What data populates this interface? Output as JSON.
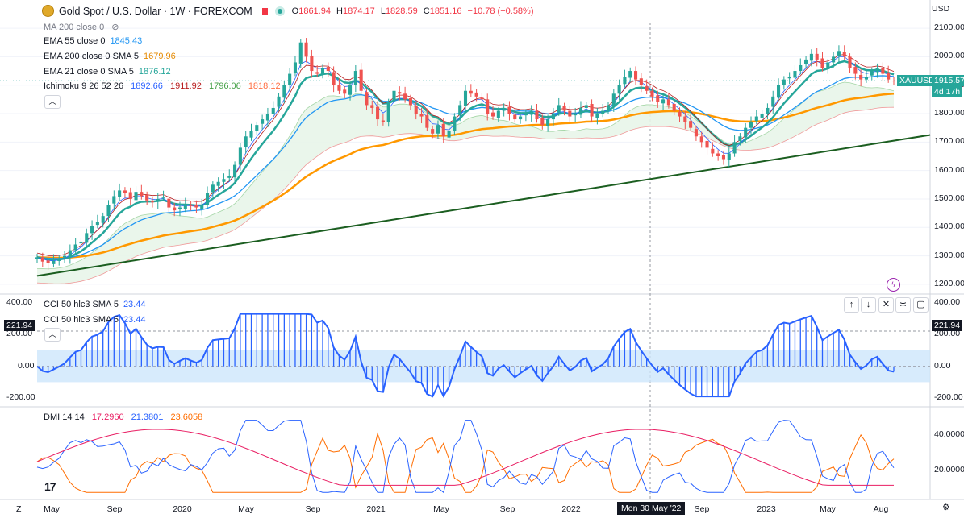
{
  "header": {
    "title": "Gold Spot / U.S. Dollar · 1W · FOREXCOM",
    "ohlc": {
      "o_label": "O",
      "o": "1861.94",
      "h_label": "H",
      "h": "1874.17",
      "l_label": "L",
      "l": "1828.59",
      "c_label": "C",
      "c": "1851.16",
      "change": "−10.78 (−0.58%)"
    }
  },
  "indicators": [
    {
      "label": "MA 200 close 0",
      "value": ""
    },
    {
      "label": "EMA 55 close 0",
      "value": "1845.43",
      "color": "#2196f3"
    },
    {
      "label": "EMA 200 close 0 SMA 5",
      "value": "1679.96",
      "color": "#ff9800"
    },
    {
      "label": "EMA 21 close 0 SMA 5",
      "value": "1876.12",
      "color": "#26a69a"
    },
    {
      "label": "Ichimoku 9 26 52 26",
      "values": [
        "1892.66",
        "1911.92",
        "1796.06",
        "1818.12"
      ],
      "colors": [
        "#2962ff",
        "#b71c1c",
        "#43a047",
        "#ff7043"
      ]
    }
  ],
  "cci_panel": {
    "label1": "CCI 50 hlc3 SMA 5",
    "value1": "23.44",
    "label2": "CCI 50 hlc3 SMA 5",
    "value2": "23.44",
    "tag_left": "221.94",
    "tag_right": "221.94"
  },
  "dmi_panel": {
    "label": "DMI 14 14",
    "values": [
      "17.2960",
      "21.3801",
      "23.6058"
    ],
    "colors": [
      "#e91e63",
      "#2962ff",
      "#ff6d00"
    ]
  },
  "price_axis": {
    "currency": "USD",
    "ticks": [
      "2100.00",
      "2000.00",
      "1900.00",
      "1800.00",
      "1700.00",
      "1600.00",
      "1500.00",
      "1400.00",
      "1300.00",
      "1200.00"
    ],
    "last_price_tag": {
      "symbol": "XAUUSD",
      "price": "1915.57",
      "countdown": "4d 17h"
    }
  },
  "cci_axis": {
    "ticks": [
      "400.00",
      "200.00",
      "0.00",
      "-200.00"
    ]
  },
  "dmi_axis": {
    "ticks": [
      "40.0000",
      "20.0000"
    ]
  },
  "time_axis": {
    "labels": [
      "May",
      "Sep",
      "2020",
      "May",
      "Sep",
      "2021",
      "May",
      "Sep",
      "2022",
      "Sep",
      "2023",
      "May",
      "Aug"
    ],
    "cursor_label": "Mon 30 May '22",
    "left_btn": "Z",
    "right_btn": "⚙"
  },
  "chart_data": {
    "type": "candlestick",
    "symbol": "XAUUSD",
    "timeframe": "1W",
    "start": "2019-03",
    "end": "2023-08",
    "price_range": [
      1180,
      2120
    ],
    "close_series": [
      1295,
      1280,
      1275,
      1282,
      1290,
      1300,
      1320,
      1340,
      1350,
      1380,
      1405,
      1420,
      1440,
      1480,
      1510,
      1530,
      1520,
      1500,
      1525,
      1510,
      1495,
      1490,
      1500,
      1505,
      1470,
      1460,
      1470,
      1480,
      1475,
      1470,
      1480,
      1520,
      1550,
      1560,
      1570,
      1580,
      1620,
      1680,
      1720,
      1740,
      1760,
      1780,
      1800,
      1820,
      1860,
      1900,
      1940,
      1980,
      2050,
      2000,
      1950,
      1940,
      1960,
      1950,
      1900,
      1880,
      1870,
      1900,
      1950,
      1880,
      1830,
      1820,
      1780,
      1770,
      1840,
      1880,
      1870,
      1850,
      1830,
      1800,
      1790,
      1750,
      1730,
      1760,
      1720,
      1740,
      1790,
      1830,
      1880,
      1870,
      1860,
      1850,
      1800,
      1790,
      1810,
      1820,
      1800,
      1780,
      1790,
      1800,
      1810,
      1780,
      1760,
      1780,
      1800,
      1830,
      1810,
      1790,
      1800,
      1820,
      1830,
      1790,
      1800,
      1810,
      1830,
      1870,
      1900,
      1930,
      1950,
      1920,
      1900,
      1880,
      1860,
      1840,
      1850,
      1830,
      1810,
      1790,
      1770,
      1750,
      1720,
      1700,
      1680,
      1660,
      1650,
      1640,
      1660,
      1700,
      1720,
      1750,
      1770,
      1790,
      1800,
      1820,
      1860,
      1900,
      1920,
      1930,
      1950,
      1970,
      1990,
      2010,
      1990,
      1960,
      1980,
      2000,
      2020,
      2000,
      1960,
      1940,
      1920,
      1930,
      1950,
      1960,
      1940,
      1920,
      1915
    ],
    "ema21_last": 1876.12,
    "ema55_last": 1845.43,
    "ema200_last": 1679.96,
    "trendline": {
      "from": [
        "2019-03",
        1230
      ],
      "to": [
        "2023-08",
        1720
      ]
    },
    "cci": {
      "range": [
        -250,
        450
      ],
      "last": 23.44,
      "max_label": 221.94
    },
    "dmi": {
      "range": [
        5,
        55
      ],
      "plus_di_last": 17.296,
      "minus_di_last": 21.3801,
      "adx_last": 23.6058
    }
  }
}
